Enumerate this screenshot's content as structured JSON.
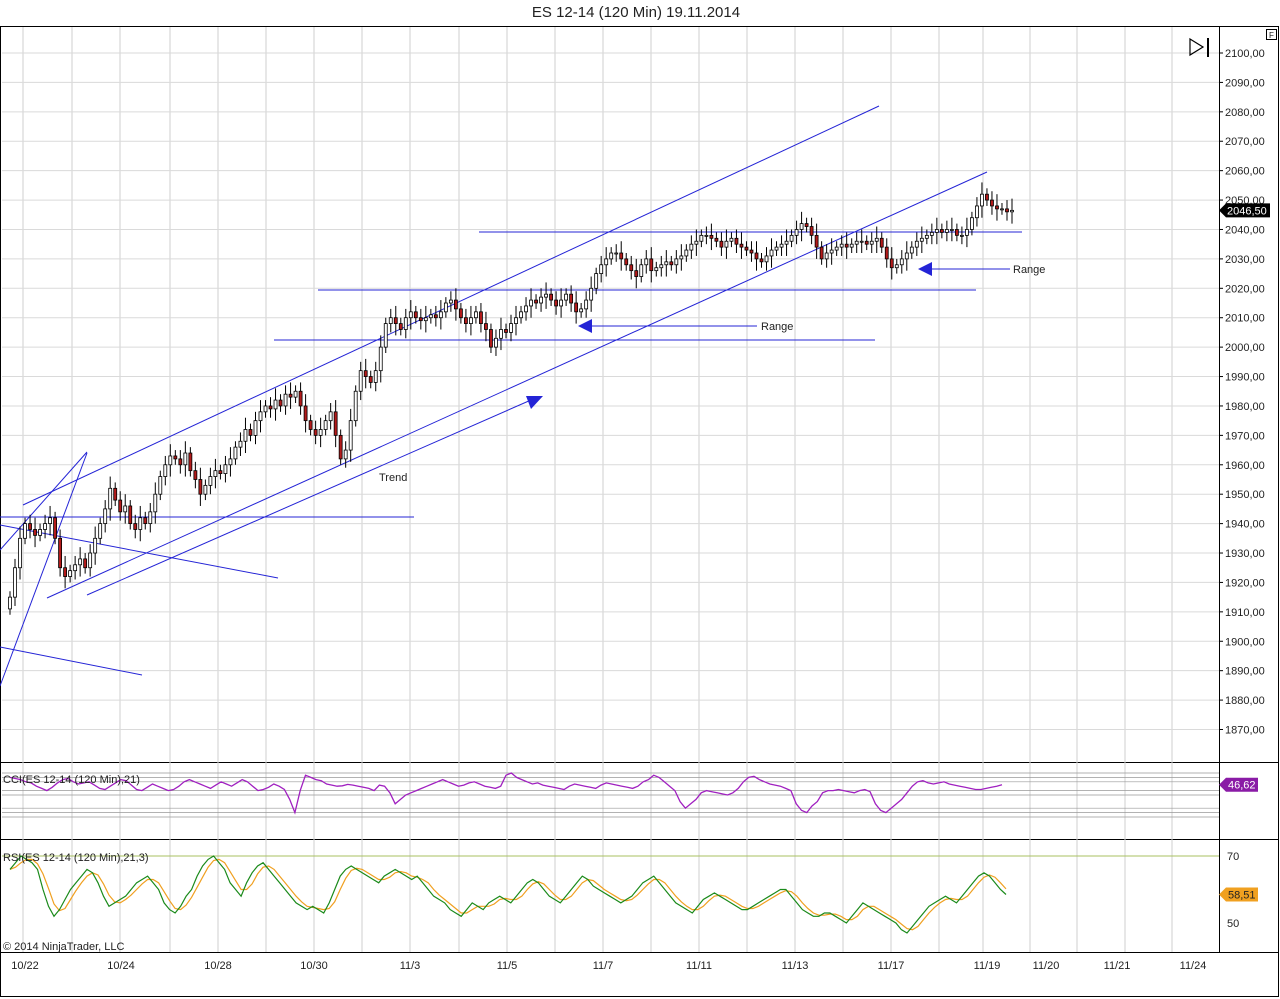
{
  "window": {
    "title": "ES 12-14 (120 Min)  19.11.2014",
    "copyright": "© 2014 NinjaTrader, LLC",
    "panel_button_label": "F"
  },
  "chart_data": [
    {
      "type": "candlestick",
      "title": "ES 12-14 (120 Min)  19.11.2014",
      "instrument": "ES 12-14",
      "ylim": [
        1860,
        2105
      ],
      "y_ticks": [
        "2100,00",
        "2090,00",
        "2080,00",
        "2070,00",
        "2060,00",
        "2050,00",
        "2040,00",
        "2030,00",
        "2020,00",
        "2010,00",
        "2000,00",
        "1990,00",
        "1980,00",
        "1970,00",
        "1960,00",
        "1950,00",
        "1940,00",
        "1930,00",
        "1920,00",
        "1910,00",
        "1900,00",
        "1890,00",
        "1880,00",
        "1870,00"
      ],
      "x_ticks": [
        "10/22",
        "10/24",
        "10/28",
        "10/30",
        "11/3",
        "11/5",
        "11/7",
        "11/11",
        "11/13",
        "11/17",
        "11/19",
        "11/20",
        "11/21",
        "11/24"
      ],
      "last_price_label": "2046,50",
      "last_price": 2046.5,
      "close_path": [
        1915,
        1925,
        1935,
        1940,
        1938,
        1936,
        1938,
        1940,
        1942,
        1935,
        1925,
        1922,
        1924,
        1926,
        1928,
        1925,
        1930,
        1935,
        1940,
        1945,
        1952,
        1948,
        1944,
        1946,
        1940,
        1938,
        1942,
        1940,
        1944,
        1950,
        1956,
        1960,
        1963,
        1962,
        1960,
        1964,
        1958,
        1955,
        1950,
        1953,
        1956,
        1958,
        1957,
        1960,
        1962,
        1966,
        1968,
        1972,
        1970,
        1975,
        1978,
        1980,
        1979,
        1982,
        1980,
        1984,
        1983,
        1985,
        1980,
        1975,
        1972,
        1970,
        1972,
        1975,
        1978,
        1970,
        1962,
        1965,
        1975,
        1985,
        1992,
        1990,
        1988,
        1992,
        2000,
        2008,
        2010,
        2008,
        2006,
        2010,
        2012,
        2010,
        2009,
        2010,
        2011,
        2010,
        2012,
        2015,
        2016,
        2013,
        2010,
        2008,
        2010,
        2012,
        2008,
        2006,
        2000,
        2003,
        2006,
        2005,
        2008,
        2010,
        2012,
        2014,
        2016,
        2015,
        2017,
        2018,
        2016,
        2014,
        2016,
        2018,
        2015,
        2012,
        2013,
        2016,
        2020,
        2025,
        2028,
        2030,
        2032,
        2032,
        2030,
        2028,
        2026,
        2024,
        2028,
        2030,
        2026,
        2027,
        2028,
        2029,
        2028,
        2030,
        2031,
        2033,
        2035,
        2036,
        2038,
        2038,
        2037,
        2036,
        2034,
        2036,
        2037,
        2035,
        2034,
        2033,
        2032,
        2030,
        2029,
        2031,
        2033,
        2034,
        2035,
        2036,
        2038,
        2040,
        2042,
        2041,
        2038,
        2034,
        2030,
        2032,
        2033,
        2034,
        2035,
        2034,
        2035,
        2036,
        2036,
        2035,
        2036,
        2037,
        2034,
        2030,
        2027,
        2028,
        2030,
        2032,
        2034,
        2036,
        2037,
        2038,
        2039,
        2040,
        2039,
        2040,
        2040,
        2038,
        2038,
        2040,
        2044,
        2048,
        2052,
        2050,
        2048,
        2047,
        2047,
        2046,
        2046.5
      ],
      "annotations": [
        {
          "text": "Range"
        },
        {
          "text": "Range"
        },
        {
          "text": "Trend"
        }
      ]
    },
    {
      "type": "line",
      "name": "CCI(ES 12-14 (120 Min),21)",
      "last_value_label": "46,62",
      "values": [
        80,
        75,
        70,
        60,
        55,
        40,
        30,
        20,
        35,
        55,
        70,
        75,
        60,
        50,
        55,
        60,
        45,
        30,
        25,
        40,
        55,
        70,
        65,
        45,
        25,
        20,
        35,
        50,
        40,
        30,
        20,
        25,
        40,
        60,
        70,
        60,
        50,
        40,
        30,
        45,
        60,
        50,
        40,
        55,
        70,
        60,
        40,
        20,
        25,
        35,
        50,
        40,
        25,
        -20,
        -80,
        20,
        90,
        80,
        70,
        65,
        50,
        45,
        40,
        42,
        48,
        45,
        40,
        35,
        30,
        20,
        45,
        40,
        10,
        -40,
        -20,
        0,
        10,
        20,
        30,
        40,
        50,
        60,
        70,
        60,
        50,
        40,
        45,
        55,
        60,
        50,
        40,
        35,
        30,
        40,
        90,
        100,
        80,
        70,
        60,
        50,
        55,
        45,
        40,
        35,
        30,
        25,
        40,
        50,
        45,
        40,
        35,
        30,
        45,
        55,
        50,
        45,
        40,
        35,
        30,
        40,
        60,
        70,
        90,
        80,
        60,
        40,
        20,
        -30,
        -60,
        -40,
        -20,
        10,
        20,
        15,
        10,
        5,
        0,
        10,
        30,
        60,
        80,
        85,
        70,
        60,
        50,
        45,
        40,
        30,
        20,
        -40,
        -70,
        -80,
        -50,
        -30,
        10,
        20,
        20,
        25,
        20,
        15,
        10,
        20,
        25,
        15,
        -40,
        -70,
        -80,
        -60,
        -40,
        -20,
        10,
        40,
        60,
        65,
        55,
        50,
        55,
        60,
        50,
        45,
        40,
        35,
        30,
        25,
        25,
        30,
        35,
        40,
        46.62
      ]
    },
    {
      "type": "line",
      "name": "RSI(ES 12-14 (120 Min),21,3)",
      "levels": [
        "70",
        "50"
      ],
      "last_value_label": "58,51",
      "values": [
        66,
        68,
        70,
        69,
        68,
        66,
        60,
        55,
        52,
        54,
        57,
        60,
        62,
        64,
        66,
        65,
        62,
        58,
        55,
        56,
        57,
        58,
        60,
        62,
        63,
        64,
        62,
        60,
        56,
        54,
        53,
        55,
        58,
        60,
        64,
        67,
        69,
        70,
        68,
        66,
        62,
        60,
        58,
        62,
        65,
        67,
        68,
        66,
        64,
        62,
        60,
        58,
        56,
        55,
        54,
        55,
        54,
        53,
        56,
        60,
        64,
        66,
        67,
        66,
        65,
        64,
        63,
        62,
        64,
        65,
        66,
        65,
        64,
        63,
        64,
        62,
        60,
        58,
        57,
        56,
        54,
        53,
        52,
        54,
        56,
        55,
        54,
        56,
        57,
        58,
        57,
        56,
        58,
        60,
        62,
        63,
        62,
        60,
        58,
        57,
        56,
        58,
        60,
        62,
        64,
        63,
        61,
        60,
        59,
        58,
        57,
        56,
        57,
        58,
        60,
        62,
        63,
        64,
        62,
        60,
        58,
        56,
        55,
        54,
        53,
        55,
        57,
        58,
        59,
        58,
        57,
        56,
        55,
        54,
        54,
        55,
        56,
        57,
        58,
        59,
        60,
        60,
        58,
        56,
        54,
        53,
        52,
        52,
        53,
        53,
        52,
        51,
        50,
        52,
        54,
        56,
        55,
        54,
        53,
        52,
        51,
        50,
        48,
        47,
        49,
        51,
        53,
        55,
        56,
        57,
        58,
        57,
        56,
        58,
        60,
        62,
        64,
        65,
        64,
        62,
        60,
        58.51
      ]
    }
  ]
}
